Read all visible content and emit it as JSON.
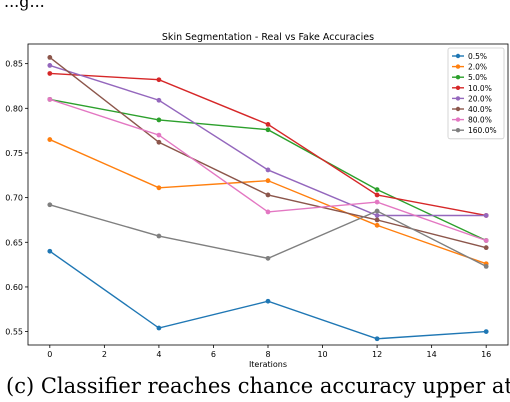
{
  "top_text": "...g...",
  "caption": "(c) Classifier reaches chance accuracy upper at",
  "chart_data": {
    "type": "line",
    "title": "Skin Segmentation - Real vs Fake Accuracies",
    "xlabel": "Iterations",
    "ylabel": "",
    "x": [
      0,
      4,
      8,
      12,
      16
    ],
    "xticks": [
      0,
      2,
      4,
      6,
      8,
      10,
      12,
      14,
      16
    ],
    "yticks": [
      0.55,
      0.6,
      0.65,
      0.7,
      0.75,
      0.8,
      0.85
    ],
    "ytick_labels": [
      "0.55",
      "0.60",
      "0.65",
      "0.70",
      "0.75",
      "0.80",
      "0.85"
    ],
    "xlim": [
      -0.8,
      16.8
    ],
    "ylim": [
      0.535,
      0.872
    ],
    "grid": false,
    "legend_position": "top-right",
    "series": [
      {
        "name": "0.5%",
        "color": "#1f77b4",
        "values": [
          0.64,
          0.554,
          0.584,
          0.542,
          0.55
        ]
      },
      {
        "name": "2.0%",
        "color": "#ff7f0e",
        "values": [
          0.765,
          0.711,
          0.719,
          0.669,
          0.626
        ]
      },
      {
        "name": "5.0%",
        "color": "#2ca02c",
        "values": [
          0.81,
          0.787,
          0.776,
          0.709,
          0.652
        ]
      },
      {
        "name": "10.0%",
        "color": "#d62728",
        "values": [
          0.839,
          0.832,
          0.782,
          0.703,
          0.68
        ]
      },
      {
        "name": "20.0%",
        "color": "#9467bd",
        "values": [
          0.848,
          0.809,
          0.731,
          0.68,
          0.68
        ]
      },
      {
        "name": "40.0%",
        "color": "#8c564b",
        "values": [
          0.857,
          0.762,
          0.703,
          0.675,
          0.644
        ]
      },
      {
        "name": "80.0%",
        "color": "#e377c2",
        "values": [
          0.81,
          0.77,
          0.684,
          0.695,
          0.652
        ]
      },
      {
        "name": "160.0%",
        "color": "#7f7f7f",
        "values": [
          0.692,
          0.657,
          0.632,
          0.685,
          0.623
        ]
      }
    ]
  }
}
